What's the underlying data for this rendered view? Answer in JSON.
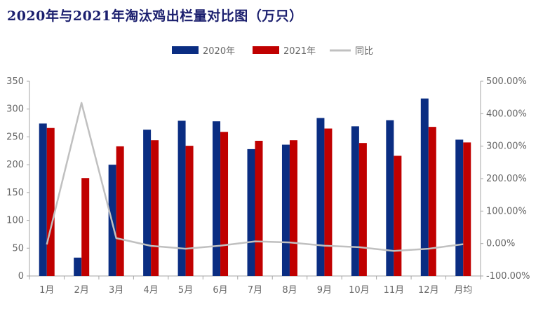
{
  "title": "2020年与2021年淘汰鸡出栏量对比图（万只）",
  "colors": {
    "series_2020": "#0a2d82",
    "series_2021": "#c00000",
    "yoy": "#c0c0c0",
    "axis": "#a6a6a6",
    "title": "#1b1f6e"
  },
  "chart_data": {
    "type": "bar",
    "title": "2020年与2021年淘汰鸡出栏量对比图（万只）",
    "categories": [
      "1月",
      "2月",
      "3月",
      "4月",
      "5月",
      "6月",
      "7月",
      "8月",
      "9月",
      "10月",
      "11月",
      "12月",
      "月均"
    ],
    "series": [
      {
        "name": "2020年",
        "type": "bar",
        "axis": "left",
        "values": [
          274,
          33,
          200,
          263,
          279,
          278,
          228,
          236,
          284,
          269,
          280,
          319,
          245
        ]
      },
      {
        "name": "2021年",
        "type": "bar",
        "axis": "left",
        "values": [
          266,
          176,
          233,
          244,
          234,
          259,
          243,
          244,
          265,
          239,
          216,
          268,
          240
        ]
      },
      {
        "name": "同比",
        "type": "line",
        "axis": "right",
        "values": [
          -2.9,
          433.3,
          16.5,
          -7.2,
          -16.1,
          -6.8,
          6.6,
          3.4,
          -6.7,
          -11.2,
          -22.9,
          -16.0,
          -2.0
        ]
      }
    ],
    "left_axis": {
      "min": 0,
      "max": 350,
      "step": 50,
      "ticks": [
        "0",
        "50",
        "100",
        "150",
        "200",
        "250",
        "300",
        "350"
      ]
    },
    "right_axis": {
      "min": -100,
      "max": 500,
      "step": 100,
      "unit": "%",
      "ticks": [
        "-100.00%",
        "0.00%",
        "100.00%",
        "200.00%",
        "300.00%",
        "400.00%",
        "500.00%"
      ]
    },
    "legend": {
      "position": "top-center",
      "items": [
        "2020年",
        "2021年",
        "同比"
      ]
    },
    "grid": false
  }
}
